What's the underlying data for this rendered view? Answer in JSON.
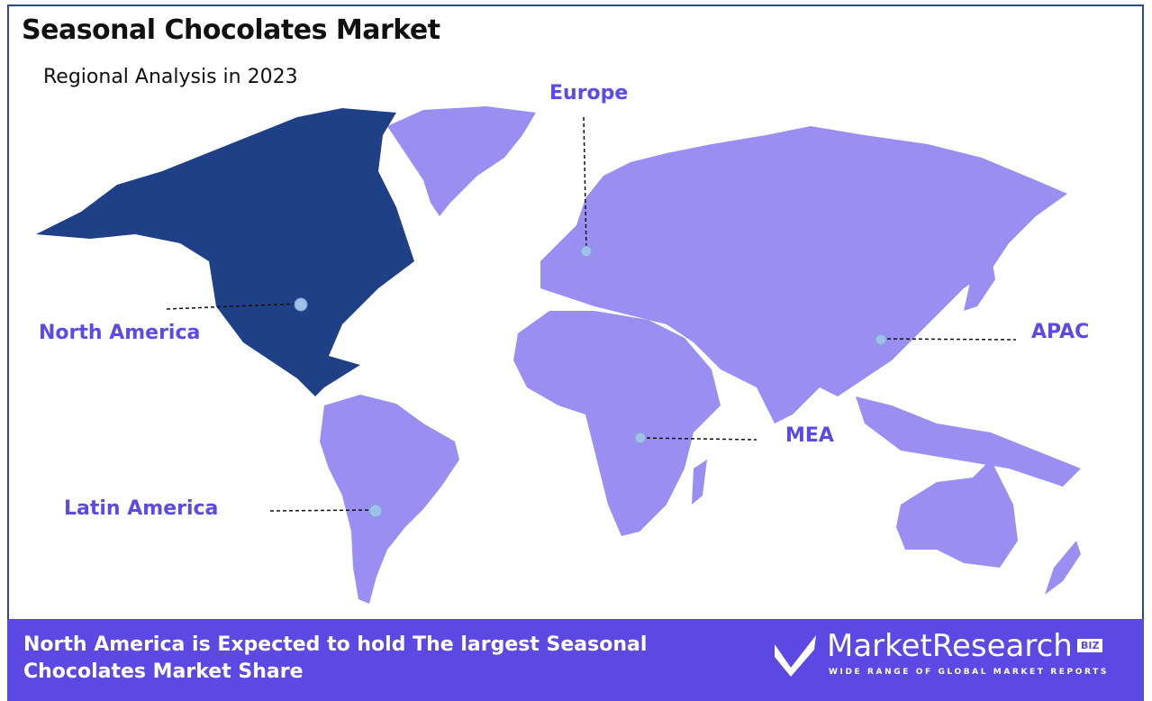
{
  "header": {
    "title": "Seasonal Chocolates Market",
    "subtitle": "Regional Analysis in 2023"
  },
  "regions": [
    {
      "name": "North America",
      "highlighted": true
    },
    {
      "name": "Europe",
      "highlighted": false
    },
    {
      "name": "APAC",
      "highlighted": false
    },
    {
      "name": "MEA",
      "highlighted": false
    },
    {
      "name": "Latin America",
      "highlighted": false
    }
  ],
  "colors": {
    "highlight": "#1f3f86",
    "other": "#9b8ef2",
    "label": "#5b4be6",
    "footer": "#5c48e3",
    "marker": "#9fc0e8"
  },
  "footer": {
    "text": "North America is Expected to hold The largest Seasonal Chocolates Market Share",
    "logo": {
      "name": "MarketResearch",
      "badge": "BIZ",
      "tagline": "WIDE RANGE OF GLOBAL MARKET REPORTS"
    }
  }
}
